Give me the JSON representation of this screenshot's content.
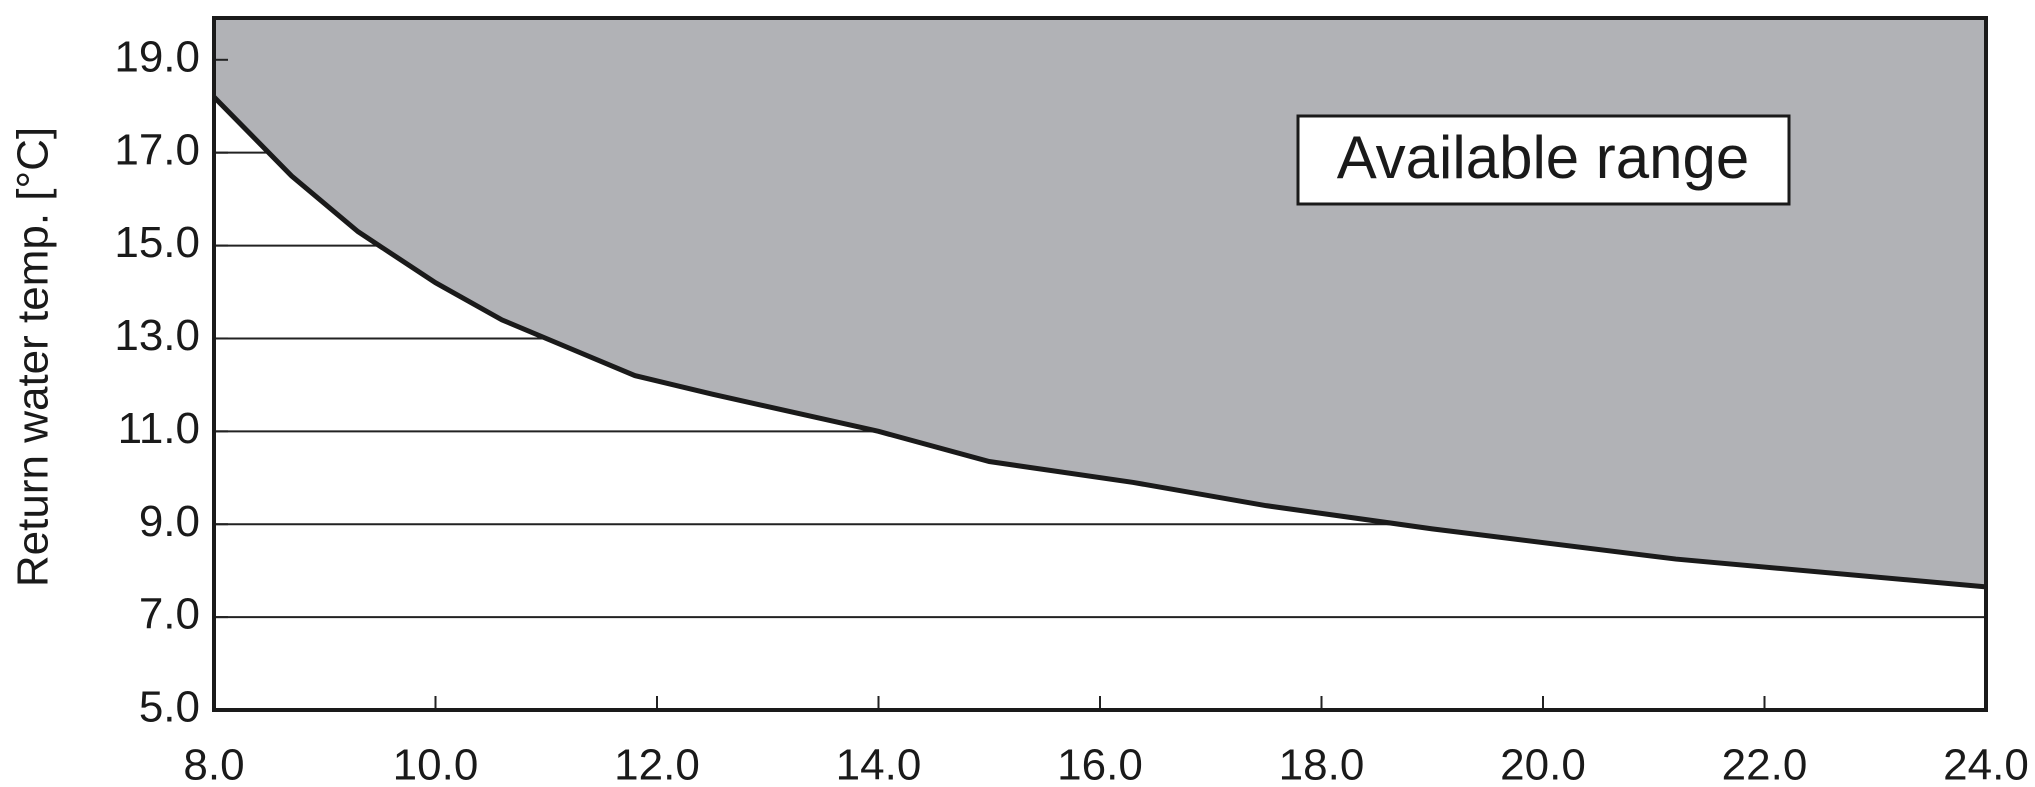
{
  "chart_data": {
    "type": "area",
    "y_label": "Return water temp. [°C]",
    "annotation": "Available range",
    "x": [
      8.0,
      8.7,
      9.3,
      10.0,
      10.6,
      11.2,
      11.8,
      12.5,
      14.0,
      15.0,
      16.3,
      17.5,
      19.0,
      21.2,
      24.0
    ],
    "series": [
      {
        "color": "#b1b2b6",
        "values": [
          18.2,
          16.5,
          15.3,
          14.2,
          13.4,
          12.8,
          12.2,
          11.8,
          11.0,
          10.35,
          9.9,
          9.4,
          8.9,
          8.25,
          7.65
        ]
      }
    ],
    "xlim": [
      8.0,
      24.0
    ],
    "ylim": [
      5.0,
      19.9
    ],
    "xticks": [
      {
        "value": 8,
        "label": "8.0"
      },
      {
        "value": 10,
        "label": "10.0"
      },
      {
        "value": 12,
        "label": "12.0"
      },
      {
        "value": 14,
        "label": "14.0"
      },
      {
        "value": 16,
        "label": "16.0"
      },
      {
        "value": 18,
        "label": "18.0"
      },
      {
        "value": 20,
        "label": "20.0"
      },
      {
        "value": 22,
        "label": "22.0"
      },
      {
        "value": 24,
        "label": "24.0"
      }
    ],
    "yticks": [
      {
        "value": 5,
        "label": "5.0"
      },
      {
        "value": 7,
        "label": "7.0"
      },
      {
        "value": 9,
        "label": "9.0"
      },
      {
        "value": 11,
        "label": "11.0"
      },
      {
        "value": 13,
        "label": "13.0"
      },
      {
        "value": 15,
        "label": "15.0"
      },
      {
        "value": 17,
        "label": "17.0"
      },
      {
        "value": 19,
        "label": "19.0"
      }
    ],
    "grid": true
  }
}
